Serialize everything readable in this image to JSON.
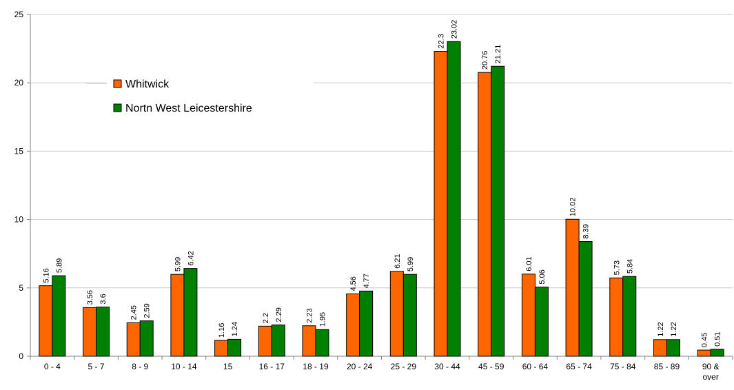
{
  "chart_data": {
    "type": "bar",
    "categories": [
      [
        "0 - 4"
      ],
      [
        "5 - 7"
      ],
      [
        "8 - 9"
      ],
      [
        "10 - 14"
      ],
      [
        "15"
      ],
      [
        "16 - 17"
      ],
      [
        "18 - 19"
      ],
      [
        "20 - 24"
      ],
      [
        "25 - 29"
      ],
      [
        "30 - 44"
      ],
      [
        "45 - 59"
      ],
      [
        "60 - 64"
      ],
      [
        "65 - 74"
      ],
      [
        "75 - 84"
      ],
      [
        "85 - 89"
      ],
      [
        "90 &",
        "over"
      ]
    ],
    "series": [
      {
        "name": "Whitwick",
        "color": "#FF6600",
        "values": [
          5.16,
          3.56,
          2.45,
          5.99,
          1.16,
          2.2,
          2.23,
          4.56,
          6.21,
          22.3,
          20.76,
          6.01,
          10.02,
          5.73,
          1.22,
          0.45
        ]
      },
      {
        "name": "Nortn West Leicestershire",
        "color": "#008000",
        "values": [
          5.89,
          3.6,
          2.59,
          6.42,
          1.24,
          2.29,
          1.95,
          4.77,
          5.99,
          23.02,
          21.21,
          5.06,
          8.39,
          5.84,
          1.22,
          0.51
        ]
      }
    ],
    "yticks": [
      "0",
      "5",
      "10",
      "15",
      "20",
      "25"
    ],
    "ylim": [
      0,
      25
    ],
    "title": "",
    "xlabel": "",
    "ylabel": "",
    "grid": true,
    "legend_position": "top-left"
  }
}
